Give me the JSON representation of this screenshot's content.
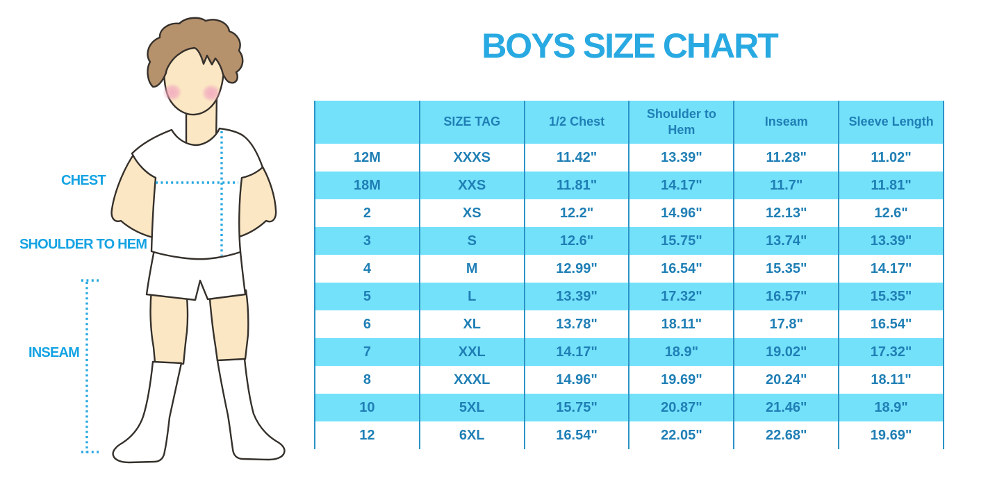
{
  "title": "BOYS SIZE CHART",
  "illustration": {
    "labels": {
      "chest": "CHEST",
      "shoulder_to_hem": "SHOULDER TO HEM",
      "inseam": "INSEAM"
    }
  },
  "colors": {
    "accent_blue": "#29A9E1",
    "table_stripe": "#74E1FA",
    "table_text": "#1F7FB5",
    "table_line": "#2B93C7",
    "label_blue": "#14A3E3",
    "skin": "#FBE7C4",
    "hair": "#B5916C",
    "blush": "#F2A9C0"
  },
  "chart_data": {
    "type": "table",
    "title": "BOYS SIZE CHART",
    "columns": [
      "",
      "SIZE TAG",
      "1/2 Chest",
      "Shoulder to Hem",
      "Inseam",
      "Sleeve Length"
    ],
    "rows": [
      [
        "12M",
        "XXXS",
        "11.42\"",
        "13.39\"",
        "11.28\"",
        "11.02\""
      ],
      [
        "18M",
        "XXS",
        "11.81\"",
        "14.17\"",
        "11.7\"",
        "11.81\""
      ],
      [
        "2",
        "XS",
        "12.2\"",
        "14.96\"",
        "12.13\"",
        "12.6\""
      ],
      [
        "3",
        "S",
        "12.6\"",
        "15.75\"",
        "13.74\"",
        "13.39\""
      ],
      [
        "4",
        "M",
        "12.99\"",
        "16.54\"",
        "15.35\"",
        "14.17\""
      ],
      [
        "5",
        "L",
        "13.39\"",
        "17.32\"",
        "16.57\"",
        "15.35\""
      ],
      [
        "6",
        "XL",
        "13.78\"",
        "18.11\"",
        "17.8\"",
        "16.54\""
      ],
      [
        "7",
        "XXL",
        "14.17\"",
        "18.9\"",
        "19.02\"",
        "17.32\""
      ],
      [
        "8",
        "XXXL",
        "14.96\"",
        "19.69\"",
        "20.24\"",
        "18.11\""
      ],
      [
        "10",
        "5XL",
        "15.75\"",
        "20.87\"",
        "21.46\"",
        "18.9\""
      ],
      [
        "12",
        "6XL",
        "16.54\"",
        "22.05\"",
        "22.68\"",
        "19.69\""
      ]
    ]
  }
}
